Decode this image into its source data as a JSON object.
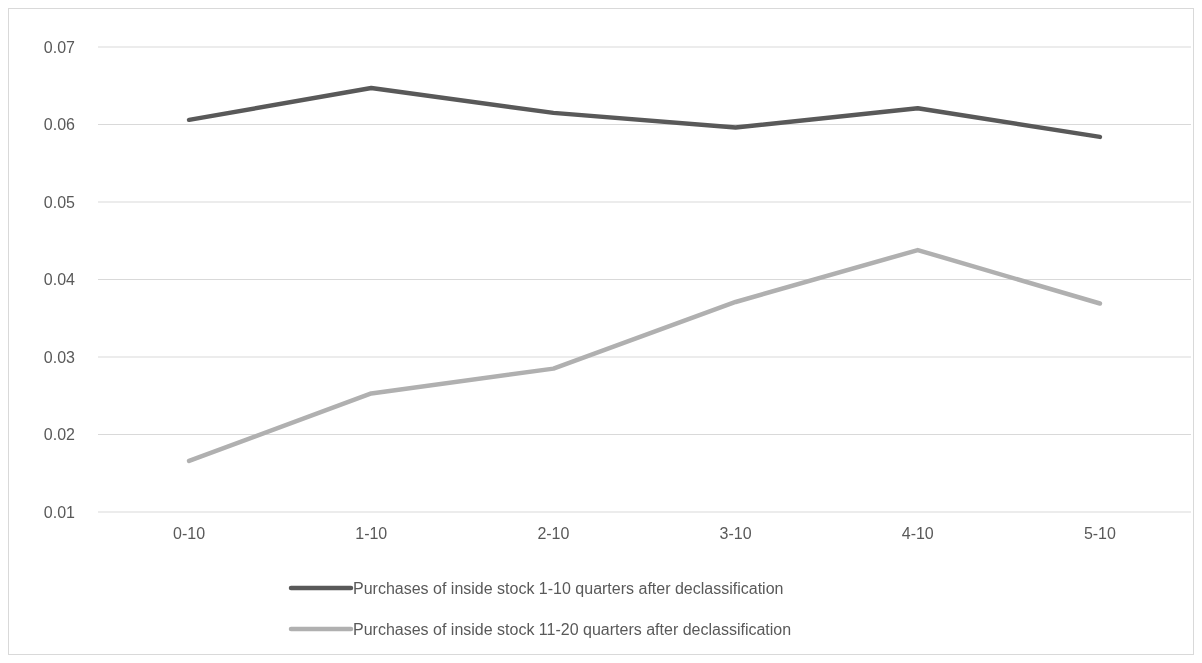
{
  "chart_data": {
    "type": "line",
    "categories": [
      "0-10",
      "1-10",
      "2-10",
      "3-10",
      "4-10",
      "5-10"
    ],
    "series": [
      {
        "name": "Purchases of inside stock 1-10 quarters after declassification",
        "color": "#595959",
        "values": [
          0.0606,
          0.0647,
          0.0615,
          0.0596,
          0.0621,
          0.0584
        ]
      },
      {
        "name": "Purchases of inside stock 11-20 quarters after declassification",
        "color": "#b0b0b0",
        "values": [
          0.0166,
          0.0253,
          0.0285,
          0.0371,
          0.0438,
          0.0369
        ]
      }
    ],
    "ylim": [
      0.01,
      0.07
    ],
    "yticks": [
      0.01,
      0.02,
      0.03,
      0.04,
      0.05,
      0.06,
      0.07
    ],
    "grid": "y",
    "legend": "bottom",
    "marker": "none",
    "line_style": "solid"
  }
}
